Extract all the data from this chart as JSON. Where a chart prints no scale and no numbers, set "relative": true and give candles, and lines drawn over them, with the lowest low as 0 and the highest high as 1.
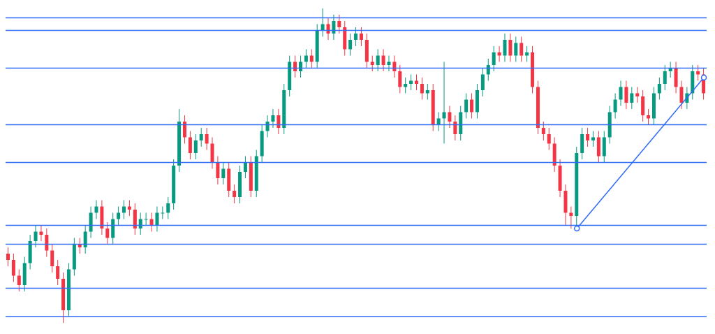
{
  "chart_data": {
    "type": "candlestick",
    "relative": true,
    "colors": [
      "#f23645",
      "#f23645",
      "#f23645",
      "#089981",
      "#089981",
      "#089981",
      "#f23645",
      "#f23645",
      "#f23645",
      "#f23645",
      "#f23645",
      "#089981",
      "#089981",
      "#f23645",
      "#089981",
      "#089981",
      "#089981",
      "#f23645",
      "#f23645",
      "#089981",
      "#089981",
      "#089981",
      "#f23645",
      "#f23645",
      "#089981",
      "#089981",
      "#f23645",
      "#089981",
      "#089981",
      "#089981",
      "#089981",
      "#089981",
      "#f23645",
      "#f23645",
      "#089981",
      "#089981",
      "#f23645",
      "#f23645",
      "#f23645",
      "#089981",
      "#f23645",
      "#f23645",
      "#089981",
      "#089981",
      "#f23645",
      "#089981",
      "#089981",
      "#089981",
      "#089981",
      "#f23645",
      "#089981",
      "#089981",
      "#f23645",
      "#089981",
      "#089981",
      "#f23645",
      "#089981",
      "#089981",
      "#f23645",
      "#089981",
      "#f23645",
      "#f23645",
      "#089981",
      "#089981",
      "#f23645",
      "#f23645",
      "#f23645",
      "#089981",
      "#f23645",
      "#089981",
      "#f23645",
      "#f23645",
      "#089981",
      "#089981",
      "#f23645",
      "#f23645",
      "#089981",
      "#f23645",
      "#089981",
      "#089981",
      "#f23645",
      "#f23645",
      "#089981",
      "#089981",
      "#f23645",
      "#089981",
      "#089981",
      "#089981",
      "#089981",
      "#f23645",
      "#089981",
      "#f23645",
      "#089981",
      "#f23645",
      "#089981",
      "#f23645",
      "#f23645",
      "#f23645",
      "#f23645",
      "#f23645",
      "#f23645",
      "#f23645",
      "#f23645",
      "#089981",
      "#089981",
      "#f23645",
      "#089981",
      "#f23645",
      "#089981",
      "#089981",
      "#089981",
      "#089981",
      "#f23645",
      "#089981",
      "#f23645",
      "#f23645",
      "#f23645",
      "#089981",
      "#089981",
      "#089981",
      "#089981",
      "#f23645",
      "#f23645",
      "#089981",
      "#089981",
      "#f23645",
      "#f23645"
    ],
    "categories": [
      null,
      null,
      null,
      null,
      null,
      null,
      null,
      null,
      null,
      null,
      null,
      null,
      null,
      null,
      null,
      null,
      null,
      null,
      null,
      null,
      null,
      null,
      null,
      null,
      null,
      null,
      null,
      null,
      null,
      null,
      null,
      null,
      null,
      null,
      null,
      null,
      null,
      null,
      null,
      null,
      null,
      null,
      null,
      null,
      null,
      null,
      null,
      null,
      null,
      null,
      null,
      null,
      null,
      null,
      null,
      null,
      null,
      null,
      null,
      null,
      null,
      null,
      null,
      null,
      null,
      null,
      null,
      null,
      null,
      null,
      null,
      null,
      null,
      null,
      null,
      null,
      null,
      null,
      null,
      null,
      null,
      null,
      null,
      null,
      null,
      null,
      null,
      null,
      null,
      null,
      null,
      null,
      null,
      null,
      null,
      null,
      null,
      null,
      null,
      null,
      null,
      null,
      null,
      null,
      null,
      null,
      null,
      null,
      null,
      null,
      null,
      null,
      null,
      null,
      null,
      null,
      null,
      null,
      null,
      null,
      null,
      null,
      null,
      null,
      null,
      null,
      null
    ],
    "ohlc": [
      [
        0.22,
        0.24,
        0.18,
        0.2
      ],
      [
        0.2,
        0.22,
        0.13,
        0.15
      ],
      [
        0.15,
        0.17,
        0.1,
        0.12
      ],
      [
        0.12,
        0.21,
        0.1,
        0.19
      ],
      [
        0.19,
        0.28,
        0.17,
        0.26
      ],
      [
        0.26,
        0.31,
        0.24,
        0.29
      ],
      [
        0.29,
        0.31,
        0.26,
        0.28
      ],
      [
        0.28,
        0.3,
        0.21,
        0.23
      ],
      [
        0.23,
        0.25,
        0.16,
        0.18
      ],
      [
        0.18,
        0.2,
        0.12,
        0.14
      ],
      [
        0.14,
        0.16,
        0,
        0.04
      ],
      [
        0.04,
        0.19,
        0.02,
        0.17
      ],
      [
        0.17,
        0.27,
        0.15,
        0.25
      ],
      [
        0.25,
        0.27,
        0.22,
        0.24
      ],
      [
        0.24,
        0.31,
        0.22,
        0.29
      ],
      [
        0.29,
        0.37,
        0.27,
        0.35
      ],
      [
        0.35,
        0.39,
        0.33,
        0.37
      ],
      [
        0.37,
        0.39,
        0.28,
        0.3
      ],
      [
        0.3,
        0.32,
        0.25,
        0.27
      ],
      [
        0.27,
        0.35,
        0.25,
        0.33
      ],
      [
        0.33,
        0.37,
        0.31,
        0.35
      ],
      [
        0.35,
        0.39,
        0.33,
        0.37
      ],
      [
        0.37,
        0.39,
        0.34,
        0.36
      ],
      [
        0.36,
        0.38,
        0.28,
        0.3
      ],
      [
        0.3,
        0.35,
        0.28,
        0.33
      ],
      [
        0.33,
        0.35,
        0.31,
        0.33
      ],
      [
        0.33,
        0.35,
        0.29,
        0.31
      ],
      [
        0.31,
        0.37,
        0.29,
        0.35
      ],
      [
        0.35,
        0.37,
        0.33,
        0.35
      ],
      [
        0.35,
        0.4,
        0.33,
        0.38
      ],
      [
        0.38,
        0.52,
        0.36,
        0.5
      ],
      [
        0.5,
        0.68,
        0.48,
        0.64
      ],
      [
        0.64,
        0.66,
        0.57,
        0.59
      ],
      [
        0.59,
        0.61,
        0.52,
        0.54
      ],
      [
        0.54,
        0.6,
        0.52,
        0.58
      ],
      [
        0.58,
        0.62,
        0.56,
        0.6
      ],
      [
        0.6,
        0.62,
        0.55,
        0.57
      ],
      [
        0.57,
        0.59,
        0.49,
        0.51
      ],
      [
        0.51,
        0.53,
        0.44,
        0.46
      ],
      [
        0.46,
        0.51,
        0.44,
        0.49
      ],
      [
        0.49,
        0.51,
        0.4,
        0.42
      ],
      [
        0.42,
        0.44,
        0.38,
        0.4
      ],
      [
        0.4,
        0.5,
        0.38,
        0.48
      ],
      [
        0.48,
        0.53,
        0.46,
        0.51
      ],
      [
        0.51,
        0.53,
        0.4,
        0.42
      ],
      [
        0.42,
        0.55,
        0.4,
        0.53
      ],
      [
        0.53,
        0.63,
        0.51,
        0.61
      ],
      [
        0.61,
        0.66,
        0.59,
        0.64
      ],
      [
        0.64,
        0.68,
        0.62,
        0.66
      ],
      [
        0.66,
        0.68,
        0.6,
        0.62
      ],
      [
        0.62,
        0.76,
        0.6,
        0.74
      ],
      [
        0.74,
        0.85,
        0.72,
        0.83
      ],
      [
        0.83,
        0.85,
        0.78,
        0.8
      ],
      [
        0.8,
        0.85,
        0.78,
        0.83
      ],
      [
        0.83,
        0.87,
        0.81,
        0.85
      ],
      [
        0.85,
        0.87,
        0.81,
        0.83
      ],
      [
        0.83,
        0.95,
        0.81,
        0.93
      ],
      [
        0.93,
        1,
        0.91,
        0.95
      ],
      [
        0.95,
        0.97,
        0.9,
        0.92
      ],
      [
        0.92,
        0.98,
        0.9,
        0.96
      ],
      [
        0.96,
        0.98,
        0.92,
        0.94
      ],
      [
        0.94,
        0.96,
        0.85,
        0.87
      ],
      [
        0.87,
        0.92,
        0.85,
        0.9
      ],
      [
        0.9,
        0.94,
        0.88,
        0.92
      ],
      [
        0.92,
        0.94,
        0.88,
        0.9
      ],
      [
        0.9,
        0.92,
        0.81,
        0.83
      ],
      [
        0.83,
        0.85,
        0.8,
        0.82
      ],
      [
        0.82,
        0.87,
        0.8,
        0.85
      ],
      [
        0.85,
        0.87,
        0.8,
        0.82
      ],
      [
        0.82,
        0.85,
        0.8,
        0.83
      ],
      [
        0.83,
        0.85,
        0.78,
        0.8
      ],
      [
        0.8,
        0.82,
        0.73,
        0.75
      ],
      [
        0.75,
        0.78,
        0.73,
        0.76
      ],
      [
        0.76,
        0.79,
        0.74,
        0.77
      ],
      [
        0.77,
        0.79,
        0.74,
        0.76
      ],
      [
        0.76,
        0.78,
        0.71,
        0.73
      ],
      [
        0.73,
        0.76,
        0.71,
        0.74
      ],
      [
        0.74,
        0.76,
        0.61,
        0.63
      ],
      [
        0.63,
        0.67,
        0.61,
        0.65
      ],
      [
        0.65,
        0.83,
        0.57,
        0.67
      ],
      [
        0.67,
        0.69,
        0.62,
        0.64
      ],
      [
        0.64,
        0.66,
        0.58,
        0.6
      ],
      [
        0.6,
        0.69,
        0.58,
        0.67
      ],
      [
        0.67,
        0.73,
        0.65,
        0.71
      ],
      [
        0.71,
        0.73,
        0.65,
        0.67
      ],
      [
        0.67,
        0.76,
        0.65,
        0.74
      ],
      [
        0.74,
        0.81,
        0.72,
        0.79
      ],
      [
        0.79,
        0.84,
        0.77,
        0.82
      ],
      [
        0.82,
        0.88,
        0.8,
        0.86
      ],
      [
        0.86,
        0.88,
        0.83,
        0.85
      ],
      [
        0.85,
        0.92,
        0.83,
        0.9
      ],
      [
        0.9,
        0.92,
        0.83,
        0.85
      ],
      [
        0.85,
        0.91,
        0.83,
        0.89
      ],
      [
        0.89,
        0.91,
        0.83,
        0.85
      ],
      [
        0.85,
        0.88,
        0.83,
        0.86
      ],
      [
        0.86,
        0.88,
        0.73,
        0.75
      ],
      [
        0.75,
        0.77,
        0.6,
        0.62
      ],
      [
        0.62,
        0.64,
        0.58,
        0.6
      ],
      [
        0.6,
        0.62,
        0.55,
        0.57
      ],
      [
        0.57,
        0.59,
        0.48,
        0.5
      ],
      [
        0.5,
        0.52,
        0.4,
        0.42
      ],
      [
        0.42,
        0.44,
        0.31,
        0.35
      ],
      [
        0.35,
        0.37,
        0.3,
        0.34
      ],
      [
        0.34,
        0.56,
        0.31,
        0.54
      ],
      [
        0.54,
        0.62,
        0.52,
        0.6
      ],
      [
        0.6,
        0.62,
        0.56,
        0.58
      ],
      [
        0.58,
        0.61,
        0.56,
        0.59
      ],
      [
        0.59,
        0.61,
        0.51,
        0.53
      ],
      [
        0.53,
        0.61,
        0.51,
        0.59
      ],
      [
        0.59,
        0.69,
        0.57,
        0.67
      ],
      [
        0.67,
        0.73,
        0.65,
        0.71
      ],
      [
        0.71,
        0.77,
        0.69,
        0.75
      ],
      [
        0.75,
        0.77,
        0.68,
        0.7
      ],
      [
        0.7,
        0.75,
        0.68,
        0.73
      ],
      [
        0.73,
        0.75,
        0.7,
        0.72
      ],
      [
        0.72,
        0.74,
        0.64,
        0.66
      ],
      [
        0.66,
        0.68,
        0.63,
        0.65
      ],
      [
        0.65,
        0.75,
        0.63,
        0.73
      ],
      [
        0.73,
        0.78,
        0.71,
        0.76
      ],
      [
        0.76,
        0.82,
        0.74,
        0.8
      ],
      [
        0.8,
        0.83,
        0.78,
        0.81
      ],
      [
        0.81,
        0.83,
        0.73,
        0.75
      ],
      [
        0.75,
        0.77,
        0.68,
        0.7
      ],
      [
        0.7,
        0.75,
        0.68,
        0.73
      ],
      [
        0.73,
        0.82,
        0.71,
        0.8
      ],
      [
        0.8,
        0.82,
        0.77,
        0.79
      ],
      [
        0.79,
        0.81,
        0.71,
        0.73
      ]
    ],
    "series": [
      {
        "type": "line",
        "color": "#2f6bf5",
        "marker": "circle",
        "values": [
          null,
          null,
          null,
          null,
          null,
          null,
          null,
          null,
          null,
          null,
          null,
          null,
          null,
          null,
          null,
          null,
          null,
          null,
          null,
          null,
          null,
          null,
          null,
          null,
          null,
          null,
          null,
          null,
          null,
          null,
          null,
          null,
          null,
          null,
          null,
          null,
          null,
          null,
          null,
          null,
          null,
          null,
          null,
          null,
          null,
          null,
          null,
          null,
          null,
          null,
          null,
          null,
          null,
          null,
          null,
          null,
          null,
          null,
          null,
          null,
          null,
          null,
          null,
          null,
          null,
          null,
          null,
          null,
          null,
          null,
          null,
          null,
          null,
          null,
          null,
          null,
          null,
          null,
          null,
          null,
          null,
          null,
          null,
          null,
          null,
          null,
          null,
          null,
          null,
          null,
          null,
          null,
          null,
          null,
          null,
          null,
          null,
          null,
          null,
          null,
          null,
          null,
          null,
          0.3,
          null,
          null,
          null,
          null,
          null,
          null,
          null,
          null,
          null,
          null,
          null,
          null,
          null,
          null,
          null,
          null,
          null,
          null,
          null,
          null,
          null,
          null,
          0.78
        ]
      }
    ],
    "ref_lines": [
      {
        "axis": "y",
        "value": 0.97,
        "color": "#2f6bf5"
      },
      {
        "axis": "y",
        "value": 0.93,
        "color": "#2f6bf5"
      },
      {
        "axis": "y",
        "value": 0.81,
        "color": "#2f6bf5"
      },
      {
        "axis": "y",
        "value": 0.63,
        "color": "#2f6bf5"
      },
      {
        "axis": "y",
        "value": 0.51,
        "color": "#2f6bf5"
      },
      {
        "axis": "y",
        "value": 0.31,
        "color": "#2f6bf5"
      },
      {
        "axis": "y",
        "value": 0.25,
        "color": "#2f6bf5"
      },
      {
        "axis": "y",
        "value": 0.11,
        "color": "#2f6bf5"
      },
      {
        "axis": "y",
        "value": 0.02,
        "color": "#2f6bf5"
      }
    ]
  }
}
